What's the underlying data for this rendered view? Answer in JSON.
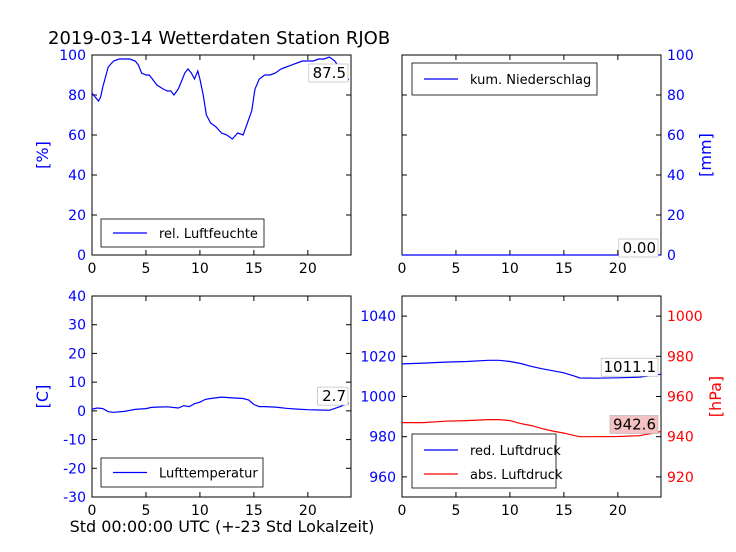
{
  "title": "2019-03-14 Wetterdaten Station RJOB",
  "xlabel": "Std 00:00:00 UTC (+-23 Std Lokalzeit)",
  "colors": {
    "blue": "#0000ff",
    "red": "#ff0000",
    "annot_bg_red": "#f4c2c2"
  },
  "chart_data": [
    {
      "id": "humidity",
      "type": "line",
      "ylabel": "[%]",
      "xlim": [
        0,
        24
      ],
      "ylim": [
        0,
        100
      ],
      "xticks": [
        "0",
        "5",
        "10",
        "15",
        "20"
      ],
      "yticks": [
        "0",
        "20",
        "40",
        "60",
        "80",
        "100"
      ],
      "legend": "top-left-bottom",
      "annotation": "87.5",
      "series": [
        {
          "name": "rel. Luftfeuchte",
          "color": "#0000ff",
          "points": [
            [
              0,
              81
            ],
            [
              0.3,
              79
            ],
            [
              0.6,
              77
            ],
            [
              0.8,
              79
            ],
            [
              1,
              84
            ],
            [
              1.5,
              94
            ],
            [
              2,
              97
            ],
            [
              2.5,
              98
            ],
            [
              3,
              98
            ],
            [
              3.5,
              98
            ],
            [
              4,
              97
            ],
            [
              4.3,
              95
            ],
            [
              4.6,
              91
            ],
            [
              5,
              90
            ],
            [
              5.3,
              90
            ],
            [
              5.6,
              88
            ],
            [
              6,
              85
            ],
            [
              6.3,
              84
            ],
            [
              6.6,
              83
            ],
            [
              7,
              82
            ],
            [
              7.3,
              82
            ],
            [
              7.6,
              80
            ],
            [
              8,
              83
            ],
            [
              8.3,
              87
            ],
            [
              8.6,
              91
            ],
            [
              8.9,
              93
            ],
            [
              9.2,
              91
            ],
            [
              9.5,
              88
            ],
            [
              9.8,
              92
            ],
            [
              10,
              88
            ],
            [
              10.3,
              80
            ],
            [
              10.6,
              70
            ],
            [
              11,
              66
            ],
            [
              11.5,
              64
            ],
            [
              12,
              61
            ],
            [
              12.5,
              60
            ],
            [
              13,
              58
            ],
            [
              13.5,
              61
            ],
            [
              14,
              60
            ],
            [
              14.4,
              66
            ],
            [
              14.8,
              72
            ],
            [
              15.1,
              83
            ],
            [
              15.5,
              88
            ],
            [
              16,
              90
            ],
            [
              16.5,
              90
            ],
            [
              17,
              91
            ],
            [
              17.5,
              93
            ],
            [
              18,
              94
            ],
            [
              18.5,
              95
            ],
            [
              19,
              96
            ],
            [
              19.5,
              97
            ],
            [
              20,
              97
            ],
            [
              20.5,
              97
            ],
            [
              21,
              98
            ],
            [
              21.5,
              98
            ],
            [
              22,
              99
            ],
            [
              22.5,
              97
            ],
            [
              23,
              93
            ],
            [
              23.5,
              89
            ],
            [
              23.8,
              87.5
            ]
          ]
        }
      ]
    },
    {
      "id": "precipitation",
      "type": "line",
      "ylabel": "[mm]",
      "xlim": [
        0,
        24
      ],
      "ylim": [
        0,
        100
      ],
      "xticks": [
        "0",
        "5",
        "10",
        "15",
        "20"
      ],
      "yticks": [
        "0",
        "20",
        "40",
        "60",
        "80",
        "100"
      ],
      "legend": "top-left",
      "annotation": "0.00",
      "series": [
        {
          "name": "kum. Niederschlag",
          "color": "#0000ff",
          "points": [
            [
              0,
              0
            ],
            [
              24,
              0
            ]
          ]
        }
      ]
    },
    {
      "id": "temperature",
      "type": "line",
      "ylabel": "[C]",
      "xlim": [
        0,
        24
      ],
      "ylim": [
        -30,
        40
      ],
      "xticks": [
        "0",
        "5",
        "10",
        "15",
        "20"
      ],
      "yticks": [
        "-30",
        "-20",
        "-10",
        "0",
        "10",
        "20",
        "30",
        "40"
      ],
      "legend": "bottom-left",
      "annotation": "2.7",
      "series": [
        {
          "name": "Lufttemperatur",
          "color": "#0000ff",
          "points": [
            [
              0,
              0.6
            ],
            [
              0.5,
              1
            ],
            [
              1,
              0.8
            ],
            [
              1.5,
              -0.3
            ],
            [
              2,
              -0.5
            ],
            [
              3,
              -0.2
            ],
            [
              4,
              0.5
            ],
            [
              5,
              0.8
            ],
            [
              5.5,
              1.2
            ],
            [
              6,
              1.3
            ],
            [
              7,
              1.4
            ],
            [
              8,
              1
            ],
            [
              8.5,
              1.8
            ],
            [
              9,
              1.5
            ],
            [
              9.5,
              2.5
            ],
            [
              10,
              3
            ],
            [
              10.5,
              4
            ],
            [
              11,
              4.3
            ],
            [
              12,
              4.8
            ],
            [
              13,
              4.5
            ],
            [
              14,
              4.3
            ],
            [
              14.5,
              3.8
            ],
            [
              15,
              2.2
            ],
            [
              15.5,
              1.5
            ],
            [
              16,
              1.5
            ],
            [
              17,
              1.3
            ],
            [
              18,
              0.9
            ],
            [
              19,
              0.6
            ],
            [
              20,
              0.4
            ],
            [
              21,
              0.3
            ],
            [
              22,
              0.2
            ],
            [
              23,
              1.5
            ],
            [
              23.8,
              2.7
            ]
          ]
        }
      ]
    },
    {
      "id": "pressure",
      "type": "line",
      "ylabel": "[hPa]",
      "xlim": [
        0,
        24
      ],
      "ylim_left": [
        950,
        1050
      ],
      "ylim_right": [
        910,
        1010
      ],
      "xticks": [
        "0",
        "5",
        "10",
        "15",
        "20"
      ],
      "yticks_left": [
        "960",
        "980",
        "1000",
        "1020",
        "1040"
      ],
      "yticks_right": [
        "920",
        "940",
        "960",
        "980",
        "1000"
      ],
      "legend": "bottom-left",
      "annotations": [
        "1011.1",
        "942.6"
      ],
      "series": [
        {
          "name": "red. Luftdruck",
          "color": "#0000ff",
          "axis": "left",
          "points": [
            [
              0,
              1016.2
            ],
            [
              2,
              1016.6
            ],
            [
              4,
              1017.1
            ],
            [
              6,
              1017.4
            ],
            [
              8,
              1018
            ],
            [
              9,
              1018
            ],
            [
              10,
              1017.4
            ],
            [
              11,
              1016.4
            ],
            [
              12,
              1015
            ],
            [
              13,
              1013.8
            ],
            [
              14,
              1012.8
            ],
            [
              15,
              1011.8
            ],
            [
              16,
              1010.1
            ],
            [
              16.5,
              1009.2
            ],
            [
              18,
              1009.1
            ],
            [
              20,
              1009.3
            ],
            [
              22,
              1009.6
            ],
            [
              23,
              1010.3
            ],
            [
              24,
              1011.1
            ]
          ]
        },
        {
          "name": "abs. Luftdruck",
          "color": "#ff0000",
          "axis": "right",
          "points": [
            [
              0,
              947
            ],
            [
              2,
              947
            ],
            [
              4,
              947.7
            ],
            [
              6,
              948
            ],
            [
              8,
              948.5
            ],
            [
              9,
              948.5
            ],
            [
              10,
              948
            ],
            [
              11,
              946.5
            ],
            [
              12,
              945.5
            ],
            [
              13,
              944
            ],
            [
              14,
              942.8
            ],
            [
              15,
              941.8
            ],
            [
              16,
              940.5
            ],
            [
              16.5,
              940
            ],
            [
              18,
              940
            ],
            [
              20,
              940.1
            ],
            [
              22,
              940.5
            ],
            [
              23,
              941.5
            ],
            [
              24,
              942.6
            ]
          ]
        }
      ]
    }
  ]
}
